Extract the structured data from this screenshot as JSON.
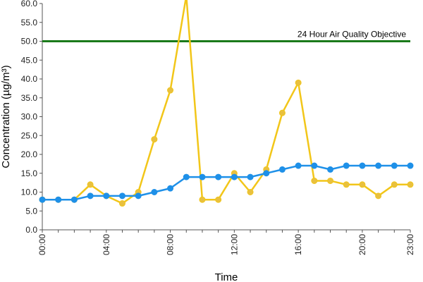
{
  "chart_data": {
    "type": "line",
    "title": "",
    "xlabel": "Time",
    "ylabel": "Concentration (µg/m³)",
    "ylim": [
      0,
      60
    ],
    "xlim": [
      0,
      23
    ],
    "x_ticks": [
      {
        "x": 0,
        "label": "00:00"
      },
      {
        "x": 4,
        "label": "04:00"
      },
      {
        "x": 8,
        "label": "08:00"
      },
      {
        "x": 12,
        "label": "12:00"
      },
      {
        "x": 16,
        "label": "16:00"
      },
      {
        "x": 20,
        "label": "20:00"
      },
      {
        "x": 23,
        "label": "23:00"
      }
    ],
    "y_ticks": [
      {
        "y": 0,
        "label": "0.0"
      },
      {
        "y": 5,
        "label": "5.0"
      },
      {
        "y": 10,
        "label": "10.0"
      },
      {
        "y": 15,
        "label": "15.0"
      },
      {
        "y": 20,
        "label": "20.0"
      },
      {
        "y": 25,
        "label": "25.0"
      },
      {
        "y": 30,
        "label": "30.0"
      },
      {
        "y": 35,
        "label": "35.0"
      },
      {
        "y": 40,
        "label": "40.0"
      },
      {
        "y": 45,
        "label": "45.0"
      },
      {
        "y": 50,
        "label": "50.0"
      },
      {
        "y": 55,
        "label": "55.0"
      },
      {
        "y": 60,
        "label": "60.0"
      }
    ],
    "grid": false,
    "legend": "none",
    "x": [
      0,
      1,
      2,
      3,
      4,
      5,
      6,
      7,
      8,
      9,
      10,
      11,
      12,
      13,
      14,
      15,
      16,
      17,
      18,
      19,
      20,
      21,
      22,
      23
    ],
    "series": [
      {
        "color": "#f2c619",
        "marker_fill": "#e8c040",
        "values": [
          8,
          8,
          8,
          12,
          9,
          7,
          10,
          24,
          37,
          62,
          8,
          8,
          15,
          10,
          16,
          31,
          39,
          13,
          13,
          12,
          12,
          9,
          12,
          12
        ]
      },
      {
        "color": "#1e90e8",
        "marker_fill": "#1e90e8",
        "values": [
          8,
          8,
          8,
          9,
          9,
          9,
          9,
          10,
          11,
          14,
          14,
          14,
          14,
          14,
          15,
          16,
          17,
          17,
          16,
          17,
          17,
          17,
          17,
          17
        ]
      }
    ],
    "reference_line": {
      "y": 50,
      "label": "24 Hour Air Quality Objective",
      "color": "#1a7a1a"
    }
  }
}
